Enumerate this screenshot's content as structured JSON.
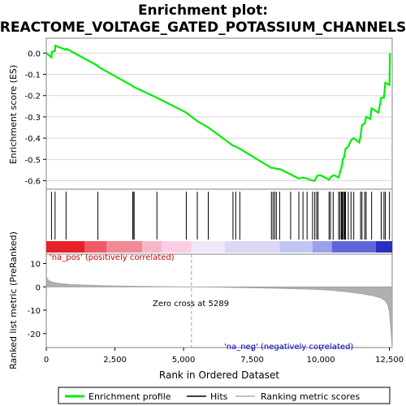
{
  "chart_data": {
    "type": "line",
    "title_line1": "Enrichment plot:",
    "title_line2": "REACTOME_VOLTAGE_GATED_POTASSIUM_CHANNELS",
    "top_panel": {
      "ylabel": "Enrichment score (ES)",
      "ylim": [
        -0.64,
        0.07
      ],
      "yticks": [
        0.0,
        -0.1,
        -0.2,
        -0.3,
        -0.4,
        -0.5,
        -0.6
      ],
      "ytick_labels": [
        "0.0",
        "-0.1",
        "-0.2",
        "-0.3",
        "-0.4",
        "-0.5",
        "-0.6"
      ],
      "series": [
        {
          "name": "Enrichment profile",
          "color": "#00ee00",
          "x": [
            0,
            190,
            200,
            320,
            330,
            420,
            720,
            740,
            1880,
            1900,
            3150,
            3160,
            3200,
            4030,
            5100,
            5500,
            5900,
            6800,
            6900,
            7050,
            8200,
            8260,
            8320,
            8380,
            8500,
            8900,
            9200,
            9350,
            9500,
            9700,
            9780,
            9850,
            9900,
            10000,
            10300,
            10350,
            10450,
            10500,
            10650,
            10700,
            10750,
            10780,
            10800,
            10850,
            10870,
            10900,
            11000,
            11100,
            11200,
            11400,
            11450,
            11500,
            11600,
            11650,
            11800,
            11850,
            12100,
            12200,
            12300,
            12350,
            12500,
            12520
          ],
          "y": [
            0.0,
            -0.02,
            0.005,
            0.01,
            0.035,
            0.03,
            0.015,
            0.02,
            -0.06,
            -0.065,
            -0.155,
            -0.158,
            -0.16,
            -0.21,
            -0.28,
            -0.32,
            -0.35,
            -0.435,
            -0.44,
            -0.45,
            -0.54,
            -0.54,
            -0.54,
            -0.545,
            -0.545,
            -0.57,
            -0.59,
            -0.585,
            -0.59,
            -0.6,
            -0.6,
            -0.58,
            -0.575,
            -0.575,
            -0.595,
            -0.585,
            -0.575,
            -0.575,
            -0.585,
            -0.56,
            -0.54,
            -0.52,
            -0.5,
            -0.49,
            -0.47,
            -0.45,
            -0.44,
            -0.41,
            -0.4,
            -0.42,
            -0.39,
            -0.34,
            -0.33,
            -0.3,
            -0.31,
            -0.26,
            -0.28,
            -0.21,
            -0.21,
            -0.14,
            -0.15,
            0.0
          ]
        }
      ]
    },
    "hits": [
      190,
      320,
      720,
      1880,
      3150,
      3160,
      3200,
      4030,
      5100,
      5500,
      5900,
      6800,
      6900,
      7050,
      8200,
      8260,
      8320,
      8380,
      8500,
      8900,
      9200,
      9350,
      9500,
      9700,
      9780,
      9850,
      9900,
      10300,
      10350,
      10450,
      10650,
      10700,
      10750,
      10780,
      10800,
      10850,
      10870,
      10900,
      11000,
      11100,
      11200,
      11450,
      11500,
      11600,
      11650,
      11850,
      12200,
      12300,
      12350,
      12500
    ],
    "heatmap_band": [
      {
        "x0": 0,
        "x1": 1400,
        "color": "#e8202a"
      },
      {
        "x0": 1400,
        "x1": 2200,
        "color": "#ee5a66"
      },
      {
        "x0": 2200,
        "x1": 3500,
        "color": "#f28a96"
      },
      {
        "x0": 3500,
        "x1": 4200,
        "color": "#f7b5c8"
      },
      {
        "x0": 4200,
        "x1": 5289,
        "color": "#fbcde3"
      },
      {
        "x0": 5289,
        "x1": 6500,
        "color": "#f0e6f8"
      },
      {
        "x0": 6500,
        "x1": 8500,
        "color": "#dad8f6"
      },
      {
        "x0": 8500,
        "x1": 9700,
        "color": "#c2c6f2"
      },
      {
        "x0": 9700,
        "x1": 10400,
        "color": "#9aa2ea"
      },
      {
        "x0": 10400,
        "x1": 12000,
        "color": "#5c68d8"
      },
      {
        "x0": 12000,
        "x1": 12600,
        "color": "#2a2ec0"
      }
    ],
    "bottom_panel": {
      "ylabel": "Ranked list metric (PreRanked)",
      "ylim": [
        -26,
        14
      ],
      "yticks": [
        10,
        0,
        -10,
        -20
      ],
      "ytick_labels": [
        "10",
        "0",
        "-10",
        "-20"
      ],
      "metric_x": [
        0,
        30,
        100,
        250,
        500,
        900,
        1500,
        2500,
        3500,
        4500,
        5289,
        6500,
        8000,
        9000,
        10000,
        10500,
        11000,
        11500,
        11900,
        12200,
        12350,
        12450,
        12500,
        12550,
        12600
      ],
      "metric_y": [
        5,
        3.5,
        2.6,
        1.9,
        1.4,
        1.0,
        0.7,
        0.4,
        0.2,
        0.08,
        0,
        -0.2,
        -0.5,
        -0.8,
        -1.2,
        -1.6,
        -2.2,
        -3.0,
        -3.8,
        -4.8,
        -6,
        -8,
        -11,
        -18,
        -26
      ],
      "color": "#b0b0b0",
      "annotations": {
        "pos": "'na_pos' (positively correlated)",
        "neg": "'na_neg' (negatively correlated)",
        "zero_cross": "Zero cross at 5289"
      },
      "zero_cross_x": 5289
    },
    "xlabel": "Rank in Ordered Dataset",
    "xlim": [
      0,
      12600
    ],
    "xticks": [
      0,
      2500,
      5000,
      7500,
      10000,
      12500
    ],
    "xtick_labels": [
      "0",
      "2,500",
      "5,000",
      "7,500",
      "10,000",
      "12,500"
    ],
    "legend": {
      "placement": "bottom",
      "items": [
        {
          "label": "Enrichment profile",
          "color": "#00ee00"
        },
        {
          "label": "Hits",
          "color": "#000000"
        },
        {
          "label": "Ranking metric scores",
          "color": "#b0b0b0"
        }
      ]
    }
  }
}
